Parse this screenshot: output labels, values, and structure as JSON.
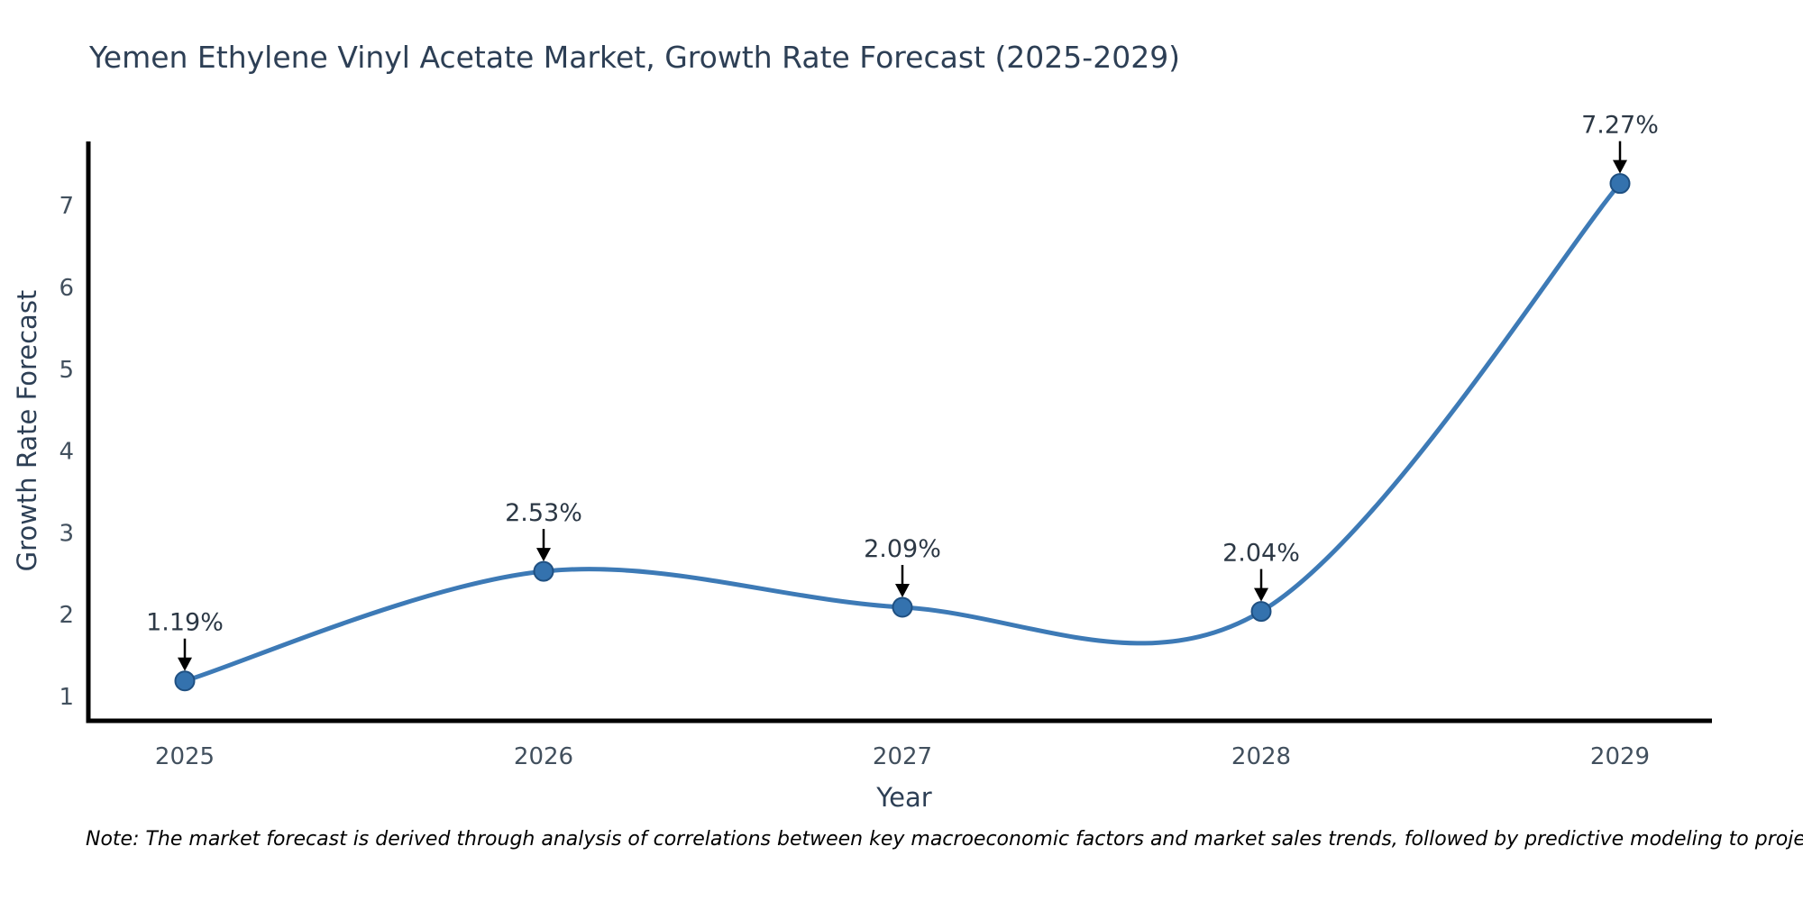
{
  "note": "Note: The market forecast is derived through analysis of correlations between key macroeconomic factors and market sales trends, followed by predictive modeling to project future sales.",
  "chart_data": {
    "type": "line",
    "title": "Yemen Ethylene Vinyl Acetate Market, Growth Rate Forecast (2025-2029)",
    "xlabel": "Year",
    "ylabel": "Growth Rate Forecast",
    "categories": [
      "2025",
      "2026",
      "2027",
      "2028",
      "2029"
    ],
    "values": [
      1.19,
      2.53,
      2.09,
      2.04,
      7.27
    ],
    "point_labels": [
      "1.19%",
      "2.53%",
      "2.09%",
      "2.04%",
      "7.27%"
    ],
    "y_ticks": [
      1,
      2,
      3,
      4,
      5,
      6,
      7
    ],
    "ylim": [
      0.7,
      7.8
    ],
    "line_shape": "spline",
    "grid": false,
    "legend": false,
    "annotation_style": "black-down-arrow",
    "colors": {
      "line": "#3d7ab6",
      "marker": "#3472ae",
      "marker_edge": "#1f5082",
      "arrow": "#000000",
      "title_text": "#2d3f55",
      "tick_text": "#42505e",
      "annotation_text": "#2c3845",
      "axis_line": "#000000",
      "note_text": "#000000",
      "background": "#ffffff"
    }
  }
}
